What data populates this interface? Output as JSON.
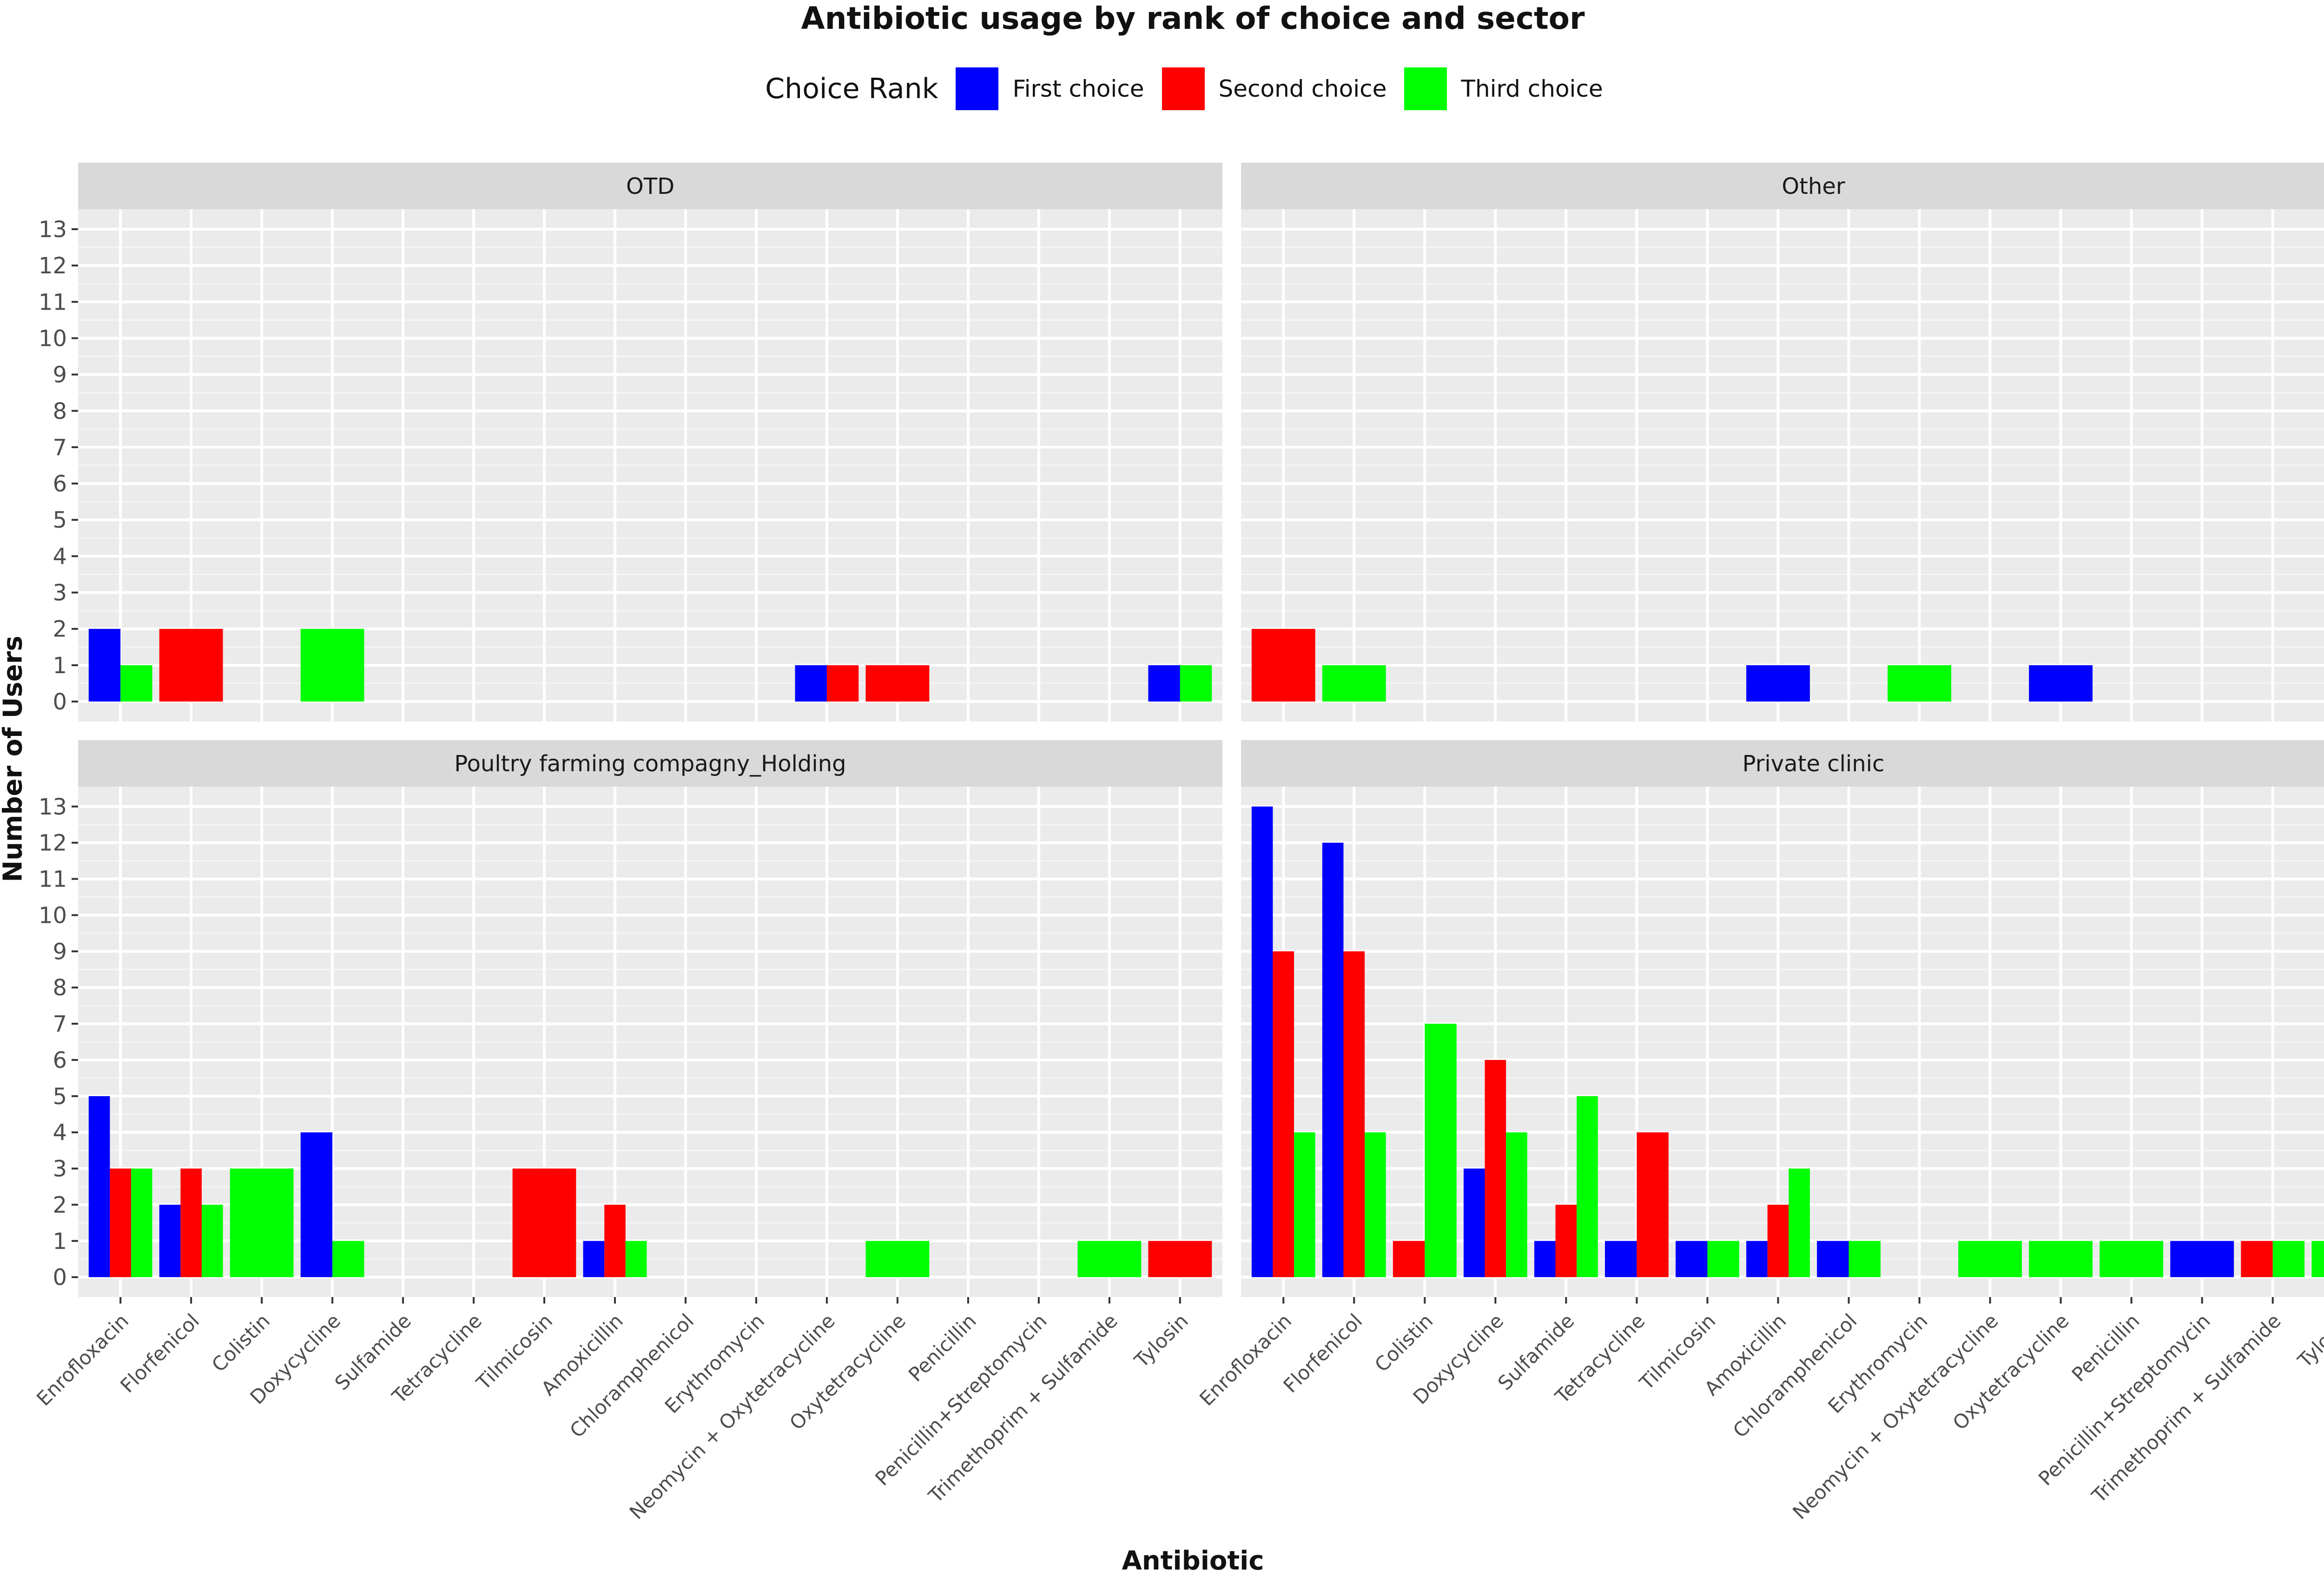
{
  "chart_data": {
    "type": "bar",
    "title": "Antibiotic usage by rank of choice and sector",
    "xlabel": "Antibiotic",
    "ylabel": "Number of Users",
    "ylim": [
      0,
      13
    ],
    "yticks": [
      "0",
      "1",
      "2",
      "3",
      "4",
      "5",
      "6",
      "7",
      "8",
      "9",
      "10",
      "11",
      "12",
      "13"
    ],
    "legend": {
      "title": "Choice Rank",
      "placement": "top",
      "entries": [
        {
          "name": "First choice",
          "color": "#0000ff"
        },
        {
          "name": "Second choice",
          "color": "#ff0000"
        },
        {
          "name": "Third choice",
          "color": "#00ff00"
        }
      ]
    },
    "panels": [
      {
        "title": "OTD",
        "categories": [
          "Enrofloxacin",
          "Florfenicol",
          "Colistin",
          "Doxycycline",
          "Sulfamide",
          "Tetracycline",
          "Tilmicosin",
          "Amoxicillin",
          "Chloramphenicol",
          "Erythromycin",
          "Neomycin + Oxytetracycline",
          "Oxytetracycline",
          "Penicillin",
          "Penicillin+Streptomycin",
          "Trimethoprim + Sulfamide",
          "Tylosin"
        ],
        "series": [
          {
            "name": "First choice",
            "values": [
              2,
              0,
              0,
              0,
              0,
              0,
              0,
              0,
              0,
              0,
              1,
              0,
              0,
              0,
              0,
              1
            ]
          },
          {
            "name": "Second choice",
            "values": [
              0,
              2,
              0,
              0,
              0,
              0,
              0,
              0,
              0,
              0,
              1,
              1,
              0,
              0,
              0,
              0
            ]
          },
          {
            "name": "Third choice",
            "values": [
              1,
              0,
              0,
              2,
              0,
              0,
              0,
              0,
              0,
              0,
              0,
              0,
              0,
              0,
              0,
              1
            ]
          }
        ]
      },
      {
        "title": "Other",
        "categories": [
          "Enrofloxacin",
          "Florfenicol",
          "Colistin",
          "Doxycycline",
          "Sulfamide",
          "Tetracycline",
          "Tilmicosin",
          "Amoxicillin",
          "Chloramphenicol",
          "Erythromycin",
          "Neomycin + Oxytetracycline",
          "Oxytetracycline",
          "Penicillin",
          "Penicillin+Streptomycin",
          "Trimethoprim + Sulfamide",
          "Tylosin"
        ],
        "series": [
          {
            "name": "First choice",
            "values": [
              0,
              0,
              0,
              0,
              0,
              0,
              0,
              1,
              0,
              0,
              0,
              1,
              0,
              0,
              0,
              0
            ]
          },
          {
            "name": "Second choice",
            "values": [
              2,
              0,
              0,
              0,
              0,
              0,
              0,
              0,
              0,
              0,
              0,
              0,
              0,
              0,
              0,
              0
            ]
          },
          {
            "name": "Third choice",
            "values": [
              0,
              1,
              0,
              0,
              0,
              0,
              0,
              0,
              0,
              1,
              0,
              0,
              0,
              0,
              0,
              0
            ]
          }
        ]
      },
      {
        "title": "Poultry farming compagny_Holding",
        "categories": [
          "Enrofloxacin",
          "Florfenicol",
          "Colistin",
          "Doxycycline",
          "Sulfamide",
          "Tetracycline",
          "Tilmicosin",
          "Amoxicillin",
          "Chloramphenicol",
          "Erythromycin",
          "Neomycin + Oxytetracycline",
          "Oxytetracycline",
          "Penicillin",
          "Penicillin+Streptomycin",
          "Trimethoprim + Sulfamide",
          "Tylosin"
        ],
        "series": [
          {
            "name": "First choice",
            "values": [
              5,
              2,
              0,
              4,
              0,
              0,
              0,
              1,
              0,
              0,
              0,
              0,
              0,
              0,
              0,
              0
            ]
          },
          {
            "name": "Second choice",
            "values": [
              3,
              3,
              0,
              0,
              0,
              0,
              3,
              2,
              0,
              0,
              0,
              0,
              0,
              0,
              0,
              1
            ]
          },
          {
            "name": "Third choice",
            "values": [
              3,
              2,
              3,
              1,
              0,
              0,
              0,
              1,
              0,
              0,
              0,
              1,
              0,
              0,
              1,
              0
            ]
          }
        ]
      },
      {
        "title": "Private clinic",
        "categories": [
          "Enrofloxacin",
          "Florfenicol",
          "Colistin",
          "Doxycycline",
          "Sulfamide",
          "Tetracycline",
          "Tilmicosin",
          "Amoxicillin",
          "Chloramphenicol",
          "Erythromycin",
          "Neomycin + Oxytetracycline",
          "Oxytetracycline",
          "Penicillin",
          "Penicillin+Streptomycin",
          "Trimethoprim + Sulfamide",
          "Tylosin"
        ],
        "series": [
          {
            "name": "First choice",
            "values": [
              13,
              12,
              0,
              3,
              1,
              1,
              1,
              1,
              1,
              0,
              0,
              0,
              0,
              1,
              0,
              0
            ]
          },
          {
            "name": "Second choice",
            "values": [
              9,
              9,
              1,
              6,
              2,
              4,
              0,
              2,
              0,
              0,
              0,
              0,
              0,
              0,
              1,
              0
            ]
          },
          {
            "name": "Third choice",
            "values": [
              4,
              4,
              7,
              4,
              5,
              0,
              1,
              3,
              1,
              0,
              1,
              1,
              1,
              0,
              1,
              1
            ]
          }
        ]
      }
    ]
  }
}
